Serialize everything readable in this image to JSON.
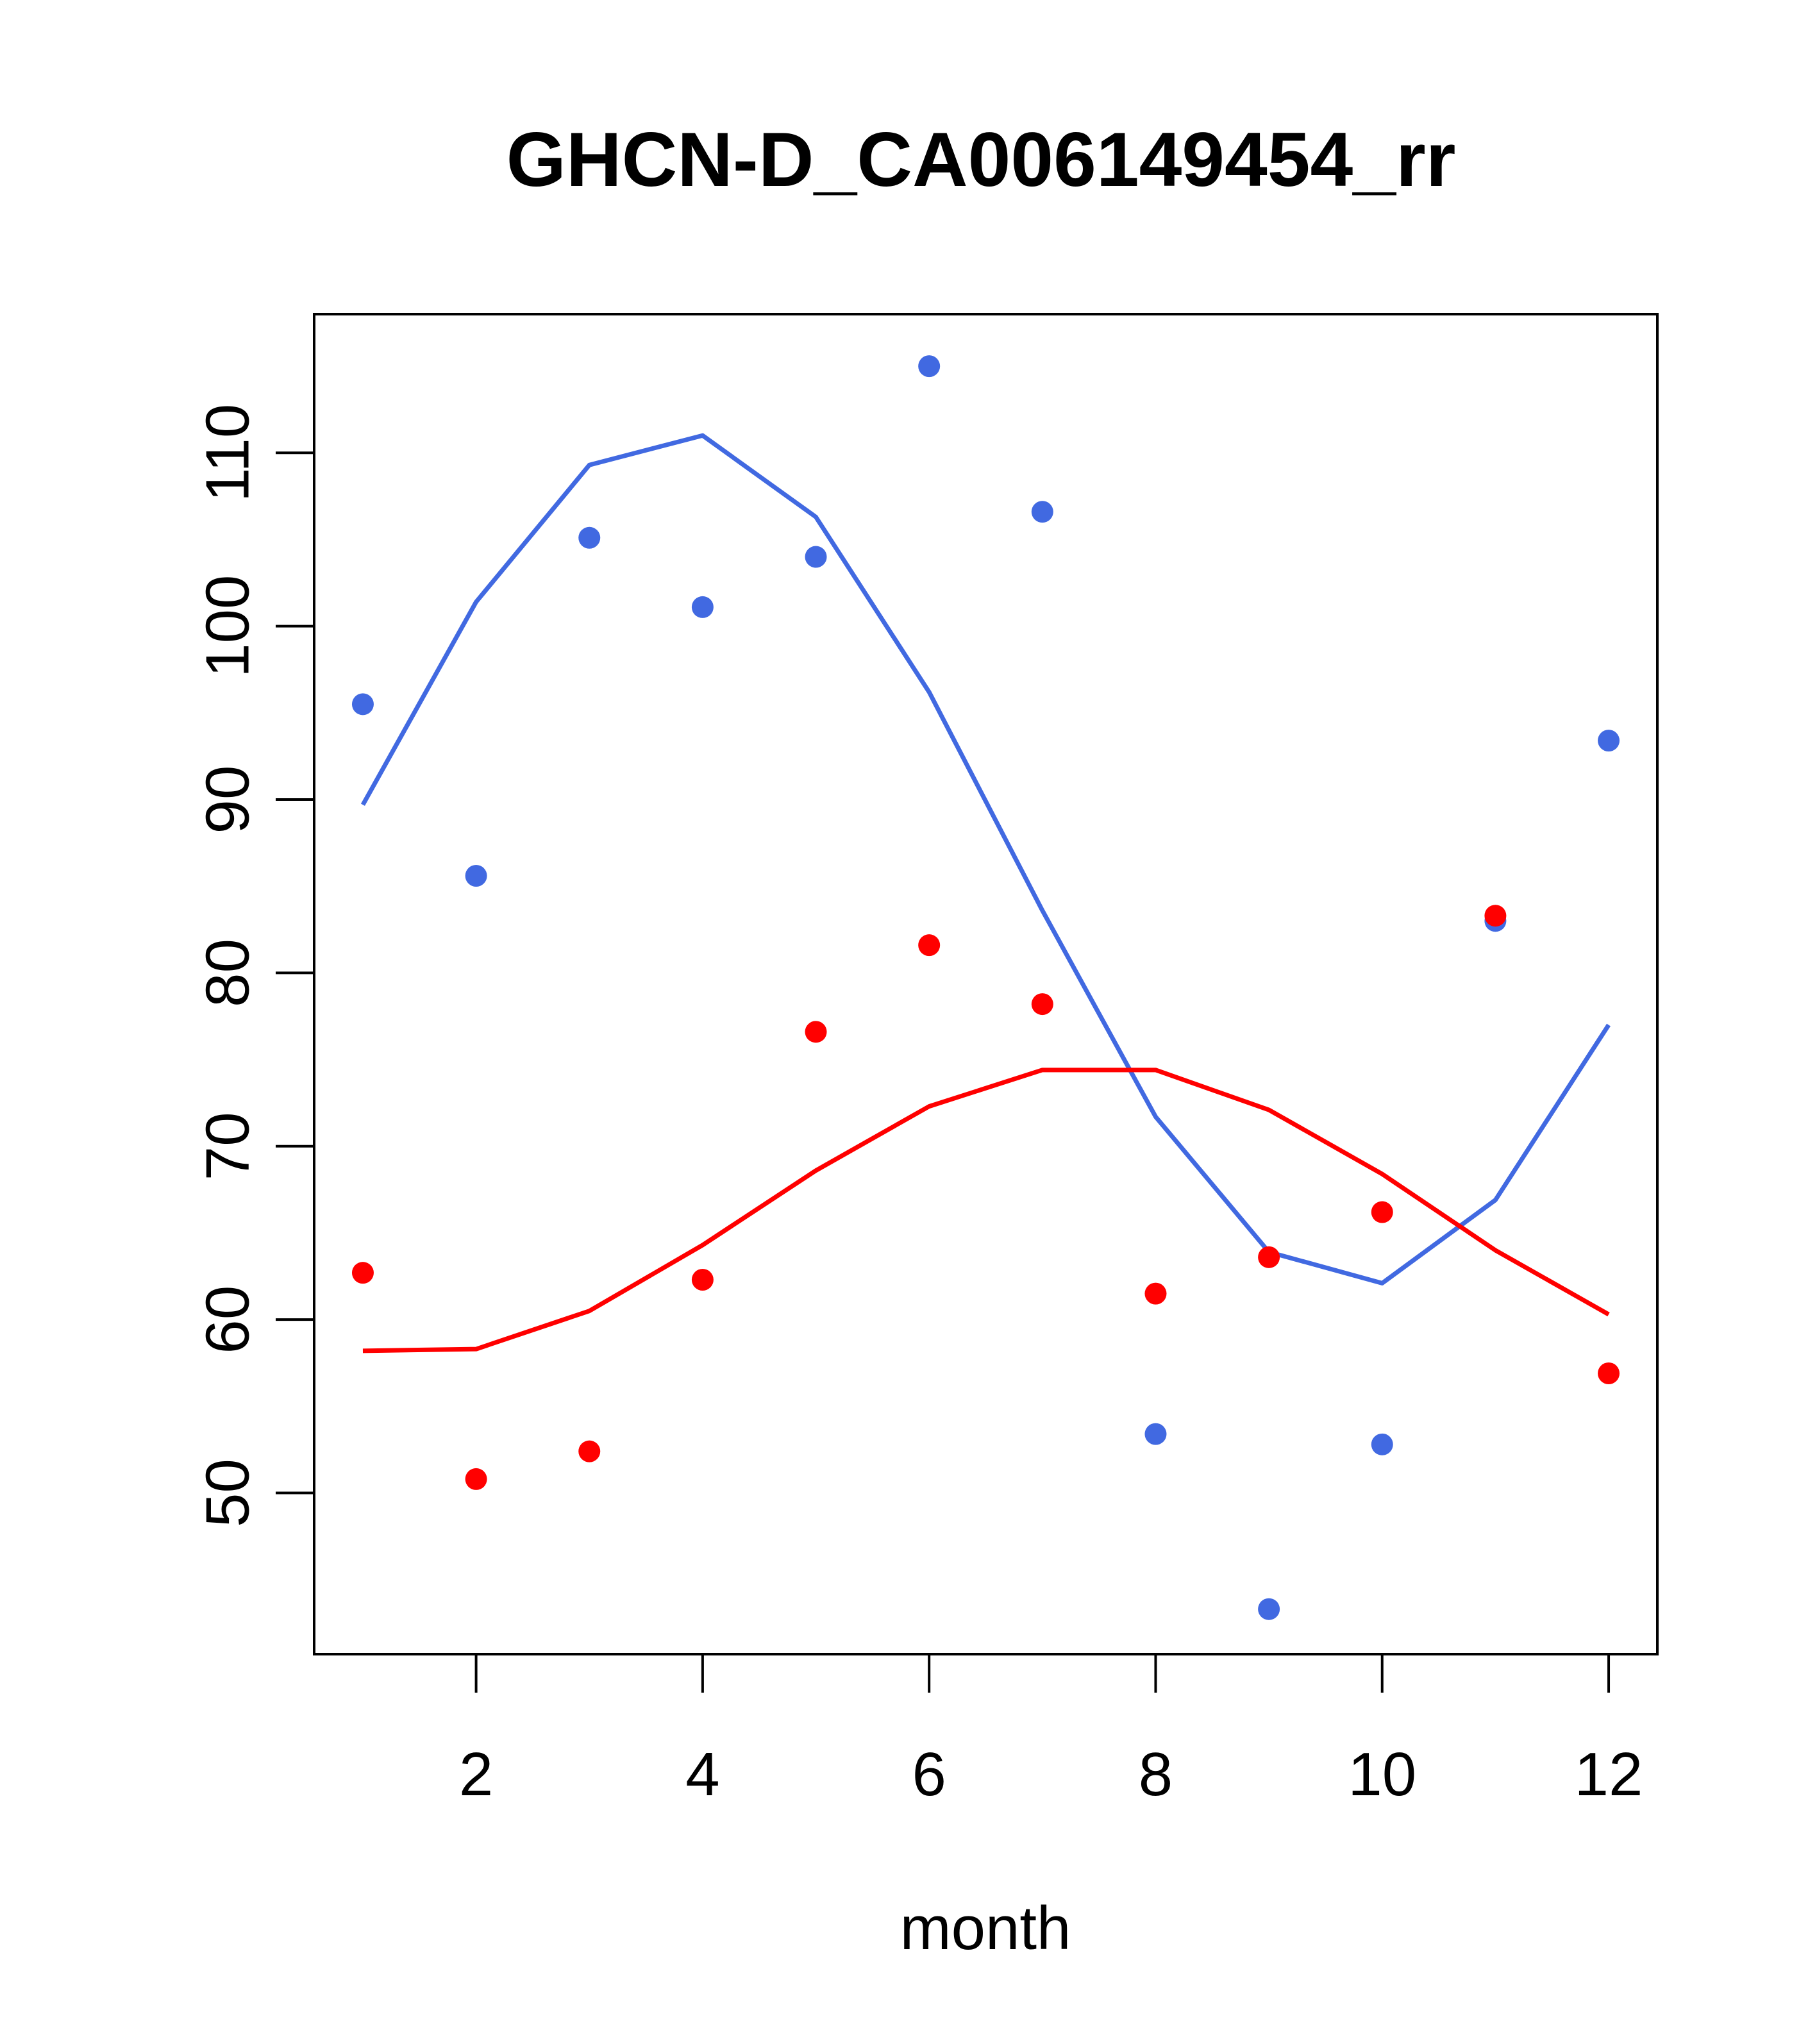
{
  "chart_data": {
    "type": "scatter",
    "title": "GHCN-D_CA006149454_rr",
    "xlabel": "month",
    "ylabel": "",
    "xlim": [
      0.57,
      12.43
    ],
    "ylim": [
      40.7,
      118.0
    ],
    "x_ticks": [
      2,
      4,
      6,
      8,
      10,
      12
    ],
    "y_ticks": [
      50,
      60,
      70,
      80,
      90,
      100,
      110
    ],
    "grid": false,
    "legend": "none",
    "x": [
      1,
      2,
      3,
      4,
      5,
      6,
      7,
      8,
      9,
      10,
      11,
      12
    ],
    "series": [
      {
        "color": "#4169E1",
        "points": [
          95.5,
          85.6,
          105.1,
          101.1,
          104.0,
          115.0,
          106.6,
          53.4,
          43.3,
          52.8,
          83.0,
          93.4
        ],
        "line": [
          89.7,
          101.4,
          109.3,
          111.0,
          106.3,
          96.2,
          83.6,
          71.7,
          63.9,
          62.1,
          66.9,
          77.0
        ]
      },
      {
        "color": "#FF0000",
        "points": [
          62.7,
          50.8,
          52.4,
          62.3,
          76.6,
          81.6,
          78.2,
          61.5,
          63.6,
          66.2,
          83.3,
          56.9
        ],
        "line": [
          58.2,
          58.3,
          60.5,
          64.3,
          68.6,
          72.3,
          74.4,
          74.4,
          72.1,
          68.4,
          64.0,
          60.3
        ]
      }
    ]
  }
}
